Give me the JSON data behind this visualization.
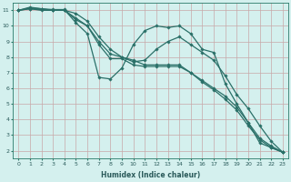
{
  "xlabel": "Humidex (Indice chaleur)",
  "bg_color": "#d4f0ee",
  "grid_color": "#c8a8a8",
  "line_color": "#2a7068",
  "xlim": [
    -0.5,
    23.5
  ],
  "ylim": [
    1.5,
    11.5
  ],
  "xticks": [
    0,
    1,
    2,
    3,
    4,
    5,
    6,
    7,
    8,
    9,
    10,
    11,
    12,
    13,
    14,
    15,
    16,
    17,
    18,
    19,
    20,
    21,
    22,
    23
  ],
  "yticks": [
    2,
    3,
    4,
    5,
    6,
    7,
    8,
    9,
    10,
    11
  ],
  "series": [
    [
      11.0,
      11.2,
      11.1,
      11.0,
      11.0,
      10.8,
      10.3,
      9.3,
      8.5,
      8.0,
      7.8,
      7.5,
      7.5,
      7.5,
      7.5,
      7.0,
      6.5,
      6.0,
      5.5,
      4.8,
      3.8,
      2.8,
      2.3,
      1.9
    ],
    [
      11.0,
      11.15,
      11.1,
      11.05,
      11.05,
      10.2,
      9.5,
      6.7,
      6.6,
      7.3,
      8.8,
      9.7,
      10.0,
      9.9,
      10.0,
      9.5,
      8.5,
      8.3,
      6.3,
      5.0,
      3.8,
      2.5,
      2.2,
      1.9
    ],
    [
      11.0,
      11.1,
      11.05,
      11.0,
      11.0,
      10.4,
      10.0,
      9.0,
      8.2,
      8.0,
      7.7,
      7.8,
      8.5,
      9.0,
      9.3,
      8.8,
      8.3,
      7.8,
      6.8,
      5.6,
      4.7,
      3.6,
      2.6,
      1.9
    ],
    [
      11.0,
      11.1,
      11.0,
      11.0,
      11.0,
      10.5,
      10.0,
      8.8,
      7.9,
      7.9,
      7.5,
      7.4,
      7.4,
      7.4,
      7.4,
      7.0,
      6.4,
      5.9,
      5.3,
      4.6,
      3.6,
      2.7,
      2.2,
      1.9
    ]
  ]
}
